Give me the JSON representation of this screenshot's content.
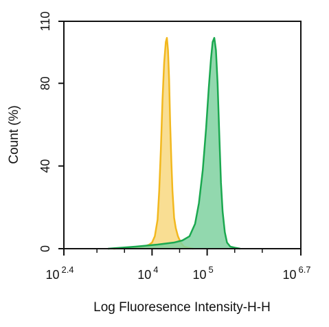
{
  "chart_data": {
    "type": "area",
    "xlabel": "Log Fluoresence Intensity-H-H",
    "ylabel": "Count  (%)",
    "xscale": "log",
    "xlim_log10": [
      2.4,
      6.7
    ],
    "ylim": [
      0,
      110
    ],
    "y_ticks": [
      {
        "value": 0,
        "label": "0"
      },
      {
        "value": 40,
        "label": "40"
      },
      {
        "value": 80,
        "label": "80"
      },
      {
        "value": 110,
        "label": "110"
      }
    ],
    "x_ticks": [
      {
        "exponent": 2.4,
        "base": "10",
        "exp_label": "2.4"
      },
      {
        "exponent": 4,
        "base": "10",
        "exp_label": "4"
      },
      {
        "exponent": 5,
        "base": "10",
        "exp_label": "5"
      },
      {
        "exponent": 6.7,
        "base": "10",
        "exp_label": "6.7"
      }
    ],
    "minor_ticks_log10": [
      3.0,
      3.5,
      4.5,
      5.5,
      6.0
    ],
    "series": [
      {
        "color": "#f2b81e",
        "fill": "#f8d880",
        "x_log10": [
          3.3,
          3.6,
          3.85,
          3.95,
          4.0,
          4.05,
          4.1,
          4.13,
          4.16,
          4.19,
          4.22,
          4.25,
          4.27,
          4.29,
          4.31,
          4.33,
          4.35,
          4.37,
          4.4,
          4.43,
          4.47,
          4.52,
          4.58,
          4.65,
          4.75
        ],
        "y": [
          0,
          0.5,
          1,
          2,
          3,
          6,
          14,
          28,
          48,
          72,
          90,
          100,
          102,
          96,
          82,
          60,
          42,
          28,
          15,
          10,
          6,
          3,
          1,
          0.5,
          0
        ]
      },
      {
        "color": "#1aa84f",
        "fill": "#7fd1a0",
        "x_log10": [
          3.2,
          3.7,
          4.1,
          4.4,
          4.55,
          4.68,
          4.78,
          4.85,
          4.92,
          4.98,
          5.03,
          5.07,
          5.1,
          5.13,
          5.16,
          5.19,
          5.22,
          5.25,
          5.28,
          5.32,
          5.36,
          5.42,
          5.5,
          5.6
        ],
        "y": [
          0,
          1,
          2,
          3,
          4,
          6,
          12,
          22,
          38,
          58,
          78,
          92,
          100,
          102,
          96,
          80,
          55,
          32,
          18,
          8,
          3,
          1,
          0.5,
          0
        ]
      }
    ]
  }
}
